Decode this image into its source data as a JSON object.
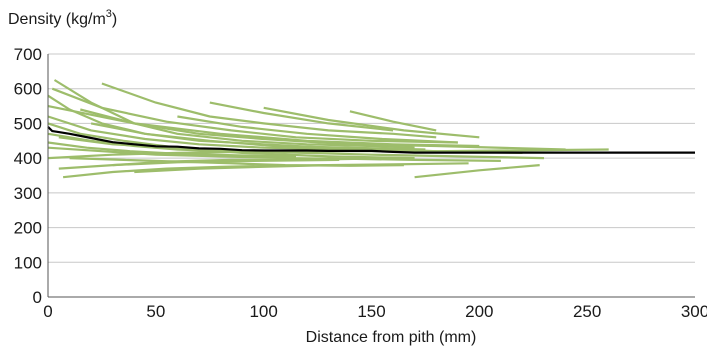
{
  "chart_data": {
    "type": "line",
    "title": "",
    "ylabel": "Density (kg/m",
    "ylabel_sup": "3",
    "ylabel_close": ")",
    "xlabel": "Distance from pith (mm)",
    "xlim": [
      0,
      300
    ],
    "ylim": [
      0,
      700
    ],
    "x_ticks": [
      0,
      50,
      100,
      150,
      200,
      250,
      300
    ],
    "y_ticks": [
      0,
      100,
      200,
      300,
      400,
      500,
      600,
      700
    ],
    "grid": "horizontal",
    "colors": {
      "profiles": "#9dbd6b",
      "mean": "#000000",
      "grid": "#c8c8c8",
      "axis": "#555555"
    },
    "mean_series": {
      "x": [
        0,
        2,
        5,
        10,
        20,
        30,
        40,
        50,
        60,
        70,
        80,
        90,
        100,
        110,
        120,
        130,
        140,
        150,
        160,
        170,
        180,
        200,
        250,
        300
      ],
      "y": [
        490,
        478,
        475,
        470,
        458,
        446,
        440,
        434,
        433,
        428,
        427,
        423,
        422,
        422,
        422,
        421,
        421,
        421,
        418,
        416,
        416,
        416,
        416,
        416
      ]
    },
    "profile_series": [
      {
        "x": [
          0,
          10,
          25,
          45,
          70,
          100,
          130,
          160,
          180
        ],
        "y": [
          580,
          540,
          500,
          470,
          450,
          440,
          430,
          425,
          420
        ]
      },
      {
        "x": [
          3,
          20,
          40,
          60,
          90,
          120,
          150,
          170
        ],
        "y": [
          625,
          560,
          500,
          470,
          450,
          440,
          435,
          430
        ]
      },
      {
        "x": [
          25,
          50,
          75,
          100,
          130,
          160,
          180
        ],
        "y": [
          615,
          560,
          520,
          500,
          480,
          470,
          460
        ]
      },
      {
        "x": [
          0,
          20,
          45,
          70,
          100,
          140,
          180,
          220
        ],
        "y": [
          520,
          480,
          455,
          440,
          430,
          425,
          420,
          415
        ]
      },
      {
        "x": [
          5,
          30,
          60,
          90,
          120,
          150,
          190,
          230
        ],
        "y": [
          460,
          440,
          430,
          420,
          415,
          410,
          405,
          400
        ]
      },
      {
        "x": [
          0,
          25,
          50,
          80,
          110,
          140,
          170,
          210
        ],
        "y": [
          430,
          420,
          410,
          405,
          400,
          398,
          395,
          392
        ]
      },
      {
        "x": [
          10,
          35,
          60,
          85,
          110,
          140,
          165
        ],
        "y": [
          400,
          395,
          390,
          385,
          380,
          378,
          380
        ]
      },
      {
        "x": [
          7,
          30,
          55,
          80,
          105,
          130
        ],
        "y": [
          345,
          360,
          370,
          375,
          378,
          380
        ]
      },
      {
        "x": [
          0,
          20,
          40,
          60,
          80,
          100,
          125
        ],
        "y": [
          470,
          450,
          435,
          425,
          420,
          418,
          415
        ]
      },
      {
        "x": [
          15,
          40,
          70,
          100,
          140,
          180,
          240
        ],
        "y": [
          540,
          500,
          470,
          455,
          440,
          435,
          425
        ]
      },
      {
        "x": [
          75,
          100,
          130,
          160
        ],
        "y": [
          560,
          530,
          500,
          480
        ]
      },
      {
        "x": [
          100,
          130,
          165,
          200
        ],
        "y": [
          545,
          510,
          480,
          460
        ]
      },
      {
        "x": [
          140,
          160,
          180
        ],
        "y": [
          535,
          505,
          480
        ]
      },
      {
        "x": [
          0,
          30,
          60,
          90,
          120,
          150,
          180,
          210,
          260
        ],
        "y": [
          400,
          410,
          415,
          418,
          420,
          420,
          420,
          422,
          425
        ]
      },
      {
        "x": [
          40,
          70,
          100,
          130,
          160,
          195
        ],
        "y": [
          360,
          370,
          375,
          380,
          382,
          385
        ]
      },
      {
        "x": [
          170,
          200,
          228
        ],
        "y": [
          345,
          365,
          380
        ]
      },
      {
        "x": [
          2,
          25,
          55,
          85,
          115,
          150,
          190
        ],
        "y": [
          600,
          545,
          505,
          480,
          460,
          450,
          445
        ]
      },
      {
        "x": [
          0,
          15,
          35,
          60,
          90,
          130,
          170
        ],
        "y": [
          500,
          470,
          450,
          430,
          415,
          405,
          400
        ]
      },
      {
        "x": [
          20,
          45,
          75,
          105,
          140,
          175
        ],
        "y": [
          500,
          470,
          450,
          435,
          430,
          425
        ]
      },
      {
        "x": [
          0,
          40,
          80,
          120,
          160,
          200
        ],
        "y": [
          550,
          500,
          470,
          450,
          440,
          435
        ]
      },
      {
        "x": [
          30,
          55,
          85,
          115,
          145
        ],
        "y": [
          380,
          390,
          395,
          395,
          398
        ]
      },
      {
        "x": [
          60,
          90,
          120,
          155,
          190
        ],
        "y": [
          520,
          490,
          470,
          455,
          445
        ]
      },
      {
        "x": [
          0,
          18,
          38,
          62,
          88,
          115
        ],
        "y": [
          445,
          430,
          420,
          412,
          408,
          405
        ]
      },
      {
        "x": [
          5,
          30,
          60,
          95,
          135
        ],
        "y": [
          370,
          380,
          388,
          392,
          395
        ]
      }
    ]
  }
}
